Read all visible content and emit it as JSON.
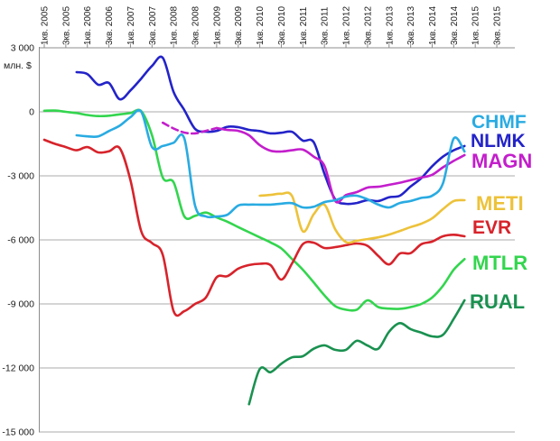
{
  "chart_data": {
    "type": "line",
    "title": "",
    "unit_label": "млн. $",
    "grid": true,
    "legend_position": "right-inside",
    "y_axis": {
      "labels": [
        "3 000",
        "0",
        "-3 000",
        "-6 000",
        "-9 000",
        "-12 000",
        "-15 000"
      ],
      "values": [
        3000,
        0,
        -3000,
        -6000,
        -9000,
        -12000,
        -15000
      ],
      "min": -15000,
      "max": 3000
    },
    "x_labels": [
      "1кв. 2005",
      "3кв. 2005",
      "1кв. 2006",
      "3кв. 2006",
      "1кв. 2007",
      "3кв. 2007",
      "1кв. 2008",
      "3кв. 2008",
      "1кв. 2009",
      "3кв. 2009",
      "1кв. 2010",
      "3кв. 2010",
      "1кв. 2011",
      "3кв. 2011",
      "1кв. 2012",
      "3кв. 2012",
      "1кв. 2013",
      "3кв. 2013",
      "1кв. 2014",
      "3кв. 2014",
      "1кв. 2015",
      "3кв. 2015"
    ],
    "quarters_per_label": 2,
    "series": [
      {
        "name": "RUAL",
        "color": "#1A9150",
        "start_index": 19,
        "dashed_points": 0,
        "values": [
          -13700,
          -12050,
          -12200,
          -11800,
          -11500,
          -11450,
          -11100,
          -10940,
          -11150,
          -11150,
          -10730,
          -10950,
          -11100,
          -10300,
          -9900,
          -10180,
          -10350,
          -10520,
          -10450,
          -9700,
          -8830
        ]
      },
      {
        "name": "MTLR",
        "color": "#33D54E",
        "start_index": 0,
        "dashed_points": 0,
        "values": [
          50,
          60,
          0,
          -60,
          -150,
          -200,
          -180,
          -120,
          -60,
          30,
          -1100,
          -3080,
          -3300,
          -4900,
          -4870,
          -4720,
          -4950,
          -5150,
          -5400,
          -5640,
          -5880,
          -6120,
          -6400,
          -6900,
          -7400,
          -7990,
          -8600,
          -9100,
          -9270,
          -9270,
          -8830,
          -9150,
          -9220,
          -9230,
          -9150,
          -9000,
          -8700,
          -8150,
          -7400,
          -6900
        ]
      },
      {
        "name": "EVR",
        "color": "#D7232B",
        "start_index": 0,
        "dashed_points": 0,
        "values": [
          -1310,
          -1500,
          -1650,
          -1800,
          -1650,
          -1900,
          -1850,
          -1700,
          -3200,
          -5600,
          -6150,
          -6700,
          -9340,
          -9340,
          -9000,
          -8700,
          -7750,
          -7700,
          -7350,
          -7180,
          -7120,
          -7180,
          -7860,
          -7100,
          -6200,
          -6130,
          -6380,
          -6340,
          -6250,
          -6170,
          -6280,
          -6750,
          -7150,
          -6640,
          -6620,
          -6200,
          -6080,
          -5830,
          -5760,
          -5830
        ]
      },
      {
        "name": "METI",
        "color": "#EDC23A",
        "start_index": 20,
        "dashed_points": 0,
        "values": [
          -3930,
          -3890,
          -3840,
          -3950,
          -5600,
          -4800,
          -4350,
          -5500,
          -6100,
          -6040,
          -5960,
          -5880,
          -5750,
          -5580,
          -5400,
          -5240,
          -4990,
          -4560,
          -4180,
          -4140
        ]
      },
      {
        "name": "NLMK",
        "color": "#2323C9",
        "start_index": 3,
        "dashed_points": 0,
        "values": [
          1860,
          1770,
          1270,
          1350,
          590,
          1000,
          1560,
          2150,
          2530,
          930,
          80,
          -800,
          -930,
          -890,
          -700,
          -720,
          -845,
          -900,
          -1010,
          -980,
          -940,
          -1350,
          -1420,
          -2900,
          -4100,
          -4310,
          -4270,
          -4140,
          -4180,
          -4000,
          -3930,
          -3500,
          -3100,
          -2550,
          -2100,
          -1800,
          -1600
        ]
      },
      {
        "name": "MAGN",
        "color": "#C31ECC",
        "start_index": 11,
        "dashed_points": 5,
        "values": [
          -510,
          -780,
          -970,
          -1010,
          -890,
          -760,
          -850,
          -890,
          -1100,
          -1560,
          -1820,
          -1860,
          -1800,
          -1770,
          -2100,
          -2530,
          -4180,
          -3900,
          -3760,
          -3550,
          -3510,
          -3420,
          -3320,
          -3200,
          -3080,
          -2950,
          -2600,
          -2300,
          -2030
        ]
      },
      {
        "name": "CHMF",
        "color": "#29ABE2",
        "start_index": 3,
        "dashed_points": 0,
        "values": [
          -1100,
          -1150,
          -1150,
          -900,
          -650,
          -250,
          0,
          -1650,
          -1600,
          -1450,
          -1250,
          -4400,
          -4900,
          -4900,
          -4820,
          -4390,
          -4350,
          -4350,
          -4350,
          -4300,
          -4280,
          -4480,
          -4450,
          -4230,
          -4140,
          -3970,
          -3930,
          -4100,
          -4350,
          -4480,
          -4270,
          -4180,
          -4030,
          -3930,
          -3350,
          -1250,
          -1860
        ]
      }
    ],
    "legend": [
      {
        "label": "CHMF",
        "color": "#29ABE2"
      },
      {
        "label": "NLMK",
        "color": "#2323C9"
      },
      {
        "label": "MAGN",
        "color": "#C31ECC"
      },
      {
        "label": "METI",
        "color": "#EDC23A"
      },
      {
        "label": "EVR",
        "color": "#D7232B"
      },
      {
        "label": "MTLR",
        "color": "#33D54E"
      },
      {
        "label": "RUAL",
        "color": "#1A9150"
      }
    ]
  }
}
